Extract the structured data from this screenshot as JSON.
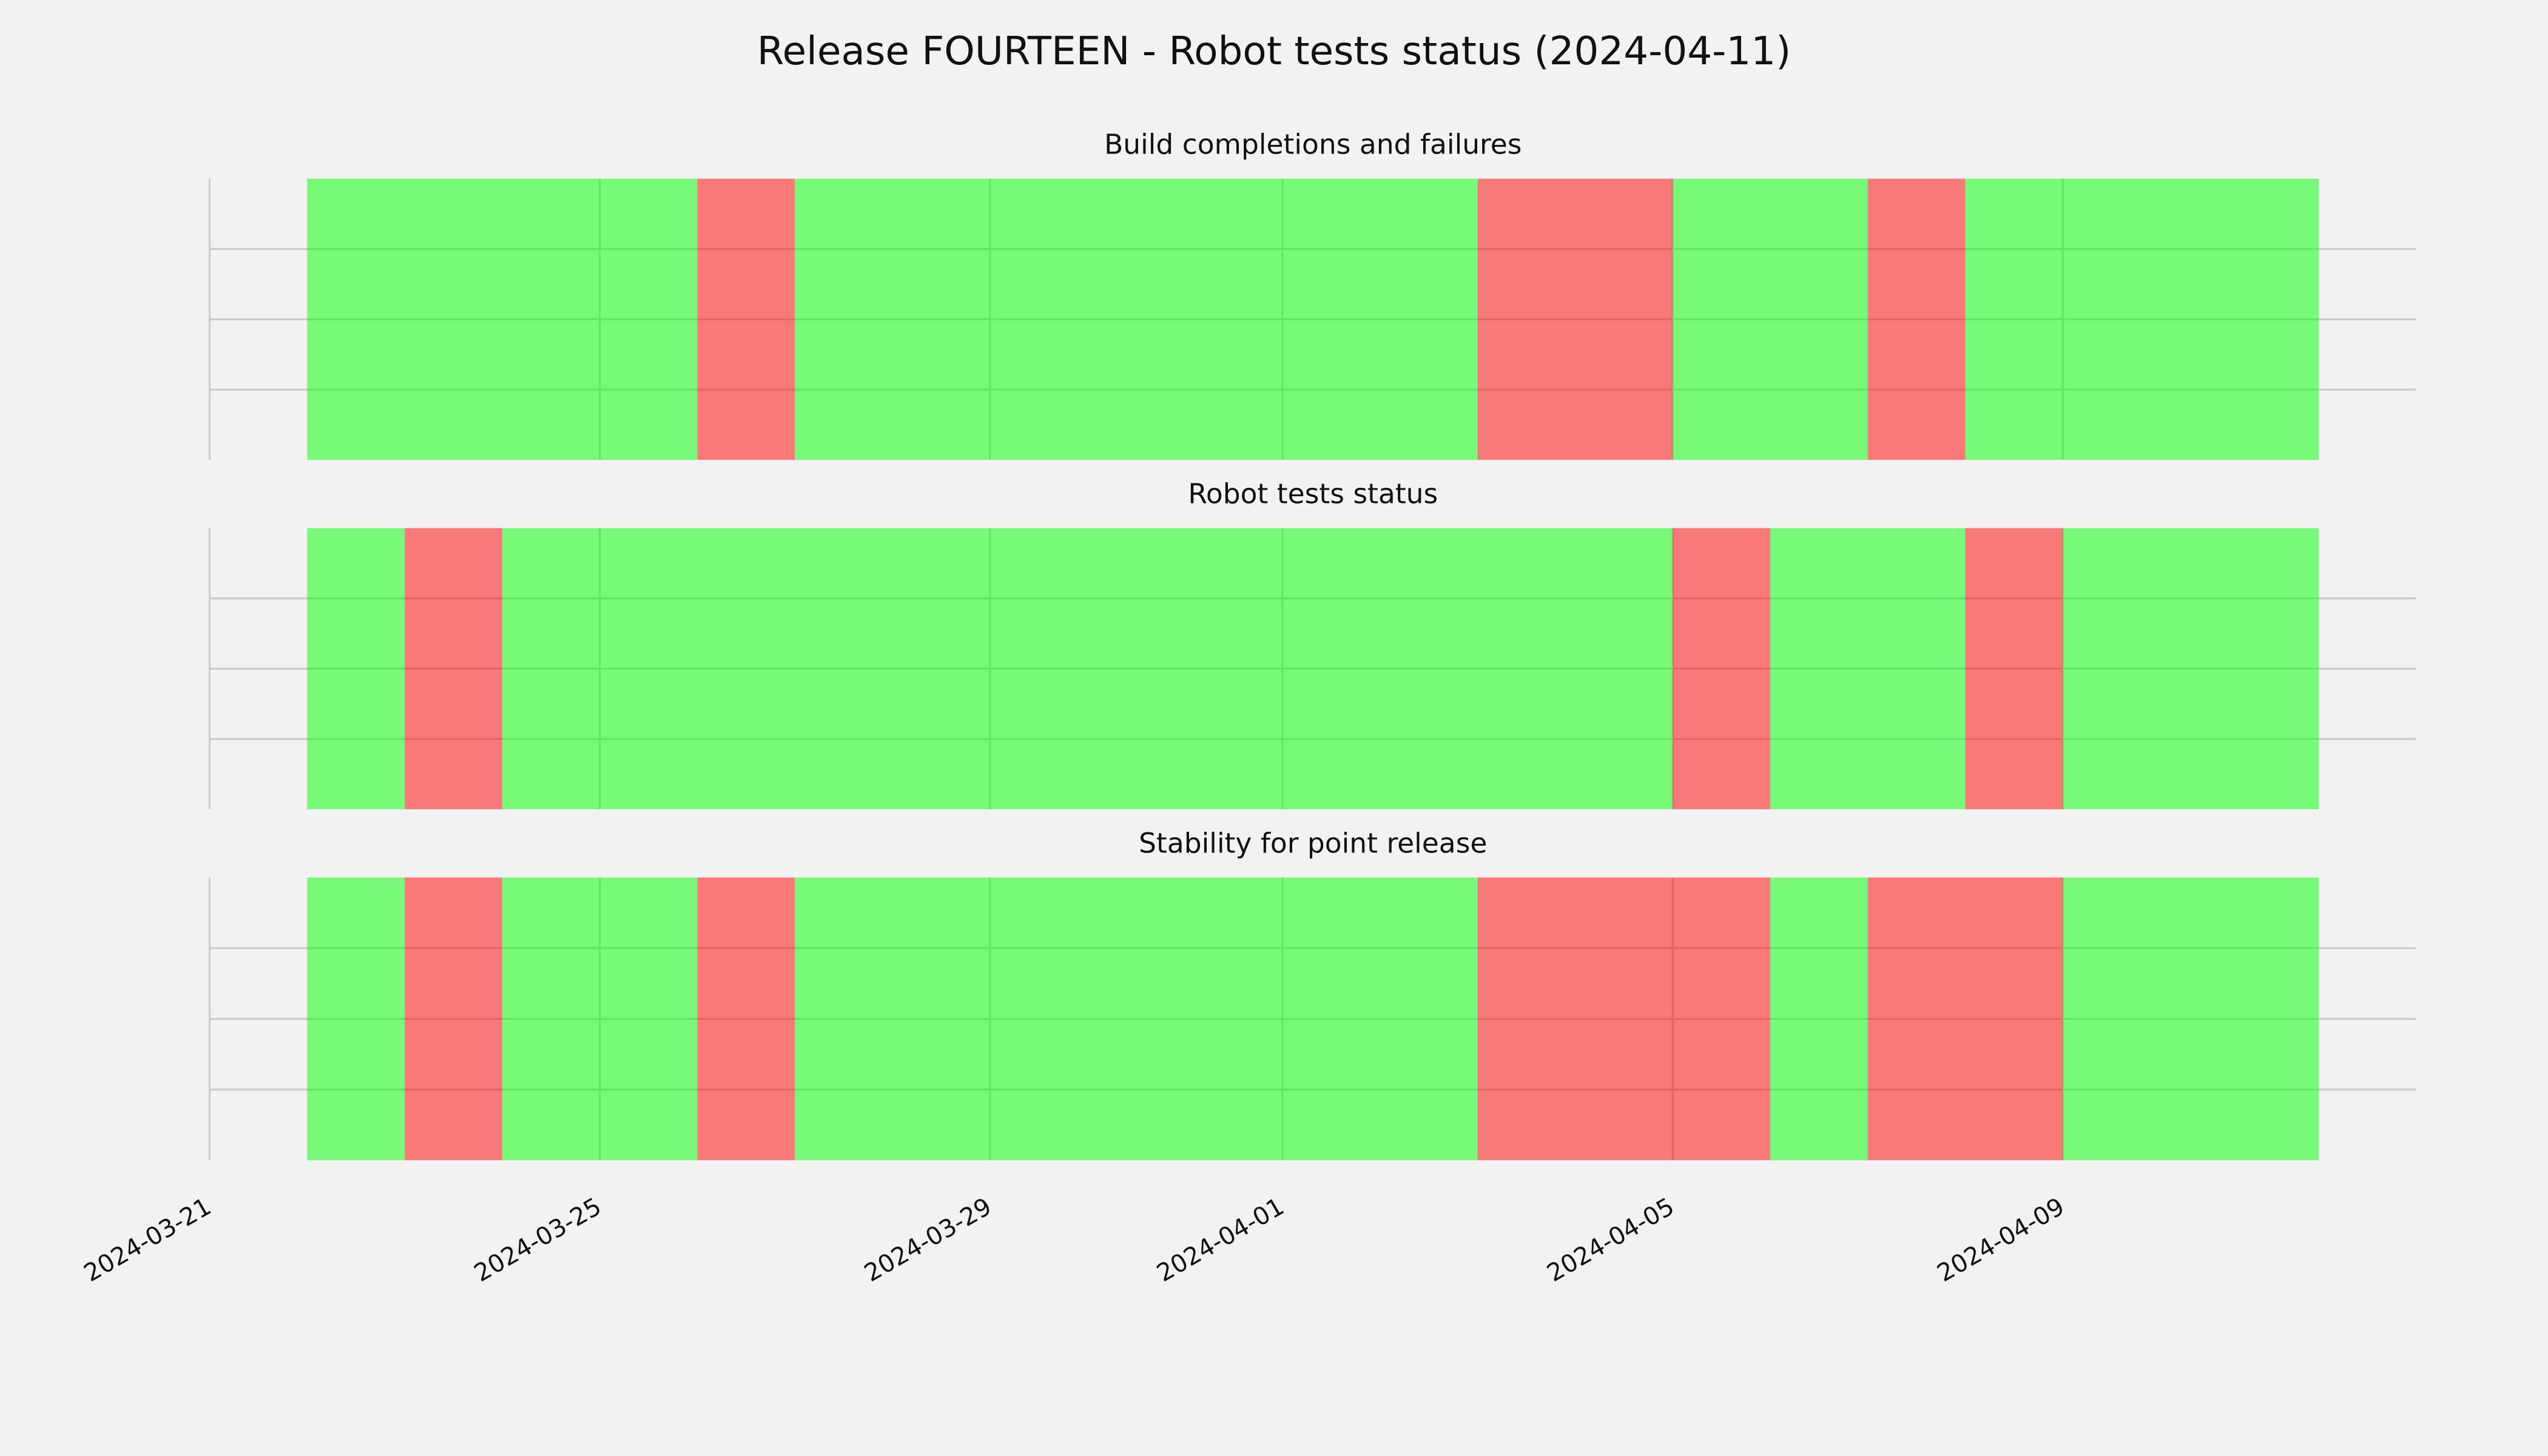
{
  "title": "Release FOURTEEN - Robot tests status (2024-04-11)",
  "xlim": [
    "2024-03-21",
    "2024-04-12T15:00"
  ],
  "xticks": [
    "2024-03-21",
    "2024-03-25",
    "2024-03-29",
    "2024-04-01",
    "2024-04-05",
    "2024-04-09"
  ],
  "chart_data": [
    {
      "type": "timeline",
      "title": "Build completions and failures",
      "ylim": [
        0,
        1
      ],
      "yticks": [
        0.25,
        0.5,
        0.75
      ],
      "grid": true,
      "alpha": 0.5,
      "spans": [
        {
          "start": "2024-03-22",
          "end": "2024-03-26",
          "color": "#00ff00"
        },
        {
          "start": "2024-03-26",
          "end": "2024-03-27",
          "color": "#ff0000"
        },
        {
          "start": "2024-03-27",
          "end": "2024-04-03",
          "color": "#00ff00"
        },
        {
          "start": "2024-04-03",
          "end": "2024-04-05",
          "color": "#ff0000"
        },
        {
          "start": "2024-04-05",
          "end": "2024-04-07",
          "color": "#00ff00"
        },
        {
          "start": "2024-04-07",
          "end": "2024-04-08",
          "color": "#ff0000"
        },
        {
          "start": "2024-04-08",
          "end": "2024-04-11T15:00",
          "color": "#00ff00"
        }
      ]
    },
    {
      "type": "timeline",
      "title": "Robot tests status",
      "ylim": [
        0,
        1
      ],
      "yticks": [
        0.25,
        0.5,
        0.75
      ],
      "grid": true,
      "alpha": 0.5,
      "spans": [
        {
          "start": "2024-03-22",
          "end": "2024-03-23",
          "color": "#00ff00"
        },
        {
          "start": "2024-03-23",
          "end": "2024-03-24",
          "color": "#ff0000"
        },
        {
          "start": "2024-03-24",
          "end": "2024-04-05",
          "color": "#00ff00"
        },
        {
          "start": "2024-04-05",
          "end": "2024-04-06",
          "color": "#ff0000"
        },
        {
          "start": "2024-04-06",
          "end": "2024-04-08",
          "color": "#00ff00"
        },
        {
          "start": "2024-04-08",
          "end": "2024-04-09",
          "color": "#ff0000"
        },
        {
          "start": "2024-04-09",
          "end": "2024-04-11T15:00",
          "color": "#00ff00"
        }
      ]
    },
    {
      "type": "timeline",
      "title": "Stability for point release",
      "ylim": [
        0,
        1
      ],
      "yticks": [
        0.25,
        0.5,
        0.75
      ],
      "grid": true,
      "alpha": 0.5,
      "spans": [
        {
          "start": "2024-03-22",
          "end": "2024-03-23",
          "color": "#00ff00"
        },
        {
          "start": "2024-03-23",
          "end": "2024-03-24",
          "color": "#ff0000"
        },
        {
          "start": "2024-03-24",
          "end": "2024-03-26",
          "color": "#00ff00"
        },
        {
          "start": "2024-03-26",
          "end": "2024-03-27",
          "color": "#ff0000"
        },
        {
          "start": "2024-03-27",
          "end": "2024-04-03",
          "color": "#00ff00"
        },
        {
          "start": "2024-04-03",
          "end": "2024-04-06",
          "color": "#ff0000"
        },
        {
          "start": "2024-04-06",
          "end": "2024-04-07",
          "color": "#00ff00"
        },
        {
          "start": "2024-04-07",
          "end": "2024-04-09",
          "color": "#ff0000"
        },
        {
          "start": "2024-04-09",
          "end": "2024-04-11T15:00",
          "color": "#00ff00"
        }
      ]
    }
  ]
}
